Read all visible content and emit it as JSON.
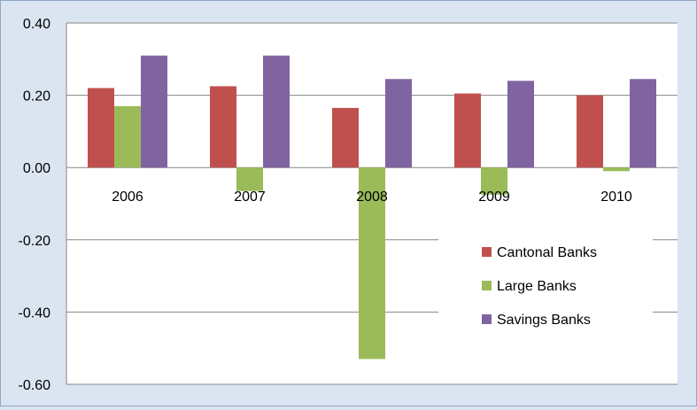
{
  "chart_data": {
    "type": "bar",
    "categories": [
      "2006",
      "2007",
      "2008",
      "2009",
      "2010"
    ],
    "series": [
      {
        "name": "Cantonal Banks",
        "color": "#c0504d",
        "values": [
          0.22,
          0.225,
          0.165,
          0.205,
          0.2
        ]
      },
      {
        "name": "Large Banks",
        "color": "#9bbb59",
        "values": [
          0.17,
          -0.065,
          -0.53,
          -0.075,
          -0.01
        ]
      },
      {
        "name": "Savings Banks",
        "color": "#8064a2",
        "values": [
          0.31,
          0.31,
          0.245,
          0.24,
          0.245
        ]
      }
    ],
    "ylim": [
      -0.6,
      0.4
    ],
    "yticks": [
      0.4,
      0.2,
      0.0,
      -0.2,
      -0.4,
      -0.6
    ],
    "ytick_labels": [
      "0.40",
      "0.20",
      "0.00",
      "-0.20",
      "-0.40",
      "-0.60"
    ],
    "grid": true,
    "legend_position": "bottom-right",
    "title": "",
    "xlabel": "",
    "ylabel": ""
  },
  "colors": {
    "frame_background": "#dbe5f1",
    "plot_background": "#ffffff",
    "gridline": "#868686"
  }
}
